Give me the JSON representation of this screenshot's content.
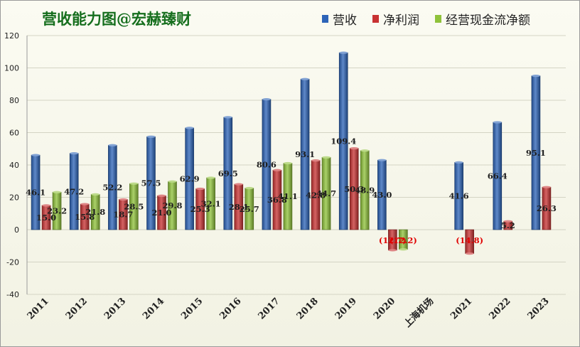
{
  "title": "营收能力图@宏赫臻财",
  "colors": {
    "revenue": "#2d64b8",
    "net_profit": "#c83232",
    "cash_flow": "#8fc23a",
    "negative_label": "#e00000",
    "title": "#156e1d"
  },
  "chart_data": {
    "type": "bar",
    "title": "营收能力图@宏赫臻财",
    "categories": [
      "2011",
      "2012",
      "2013",
      "2014",
      "2015",
      "2016",
      "2017",
      "2018",
      "2019",
      "2020",
      "上海机场",
      "2021",
      "2022",
      "2023"
    ],
    "ylim": [
      -40,
      120
    ],
    "yticks": [
      -40,
      -20,
      0,
      20,
      40,
      60,
      80,
      100,
      120
    ],
    "grid": true,
    "legend_position": "top-right",
    "series": [
      {
        "name": "营收",
        "color": "#2d64b8",
        "values": [
          46.1,
          47.2,
          52.2,
          57.5,
          62.9,
          69.5,
          80.6,
          93.1,
          109.4,
          43.0,
          null,
          41.6,
          66.4,
          95.1
        ],
        "labels": [
          "46.1",
          "47.2",
          "52.2",
          "57.5",
          "62.9",
          "69.5",
          "80.6",
          "93.1",
          "109.4",
          "43.0",
          null,
          "41.6",
          "66.4",
          "95.1"
        ]
      },
      {
        "name": "净利润",
        "color": "#c83232",
        "values": [
          15.0,
          15.8,
          18.7,
          21.0,
          25.3,
          28.1,
          36.8,
          42.8,
          50.3,
          -12.7,
          null,
          -14.8,
          5.2,
          26.3
        ],
        "labels": [
          "15.0",
          "15.8",
          "18.7",
          "21.0",
          "25.3",
          "28.1",
          "36.8",
          "42.8",
          "50.3",
          "(12.7)",
          null,
          "(14.8)",
          "5.2",
          "26.3"
        ]
      },
      {
        "name": "经营现金流净额",
        "color": "#8fc23a",
        "values": [
          23.2,
          21.8,
          28.5,
          29.8,
          32.1,
          25.7,
          41.1,
          44.7,
          48.9,
          -12.2,
          null,
          null,
          null,
          null
        ],
        "labels": [
          "23.2",
          "21.8",
          "28.5",
          "29.8",
          "32.1",
          "25.7",
          "41.1",
          "44.7",
          "48.9",
          "(12.2)",
          null,
          null,
          null,
          null
        ]
      }
    ]
  }
}
